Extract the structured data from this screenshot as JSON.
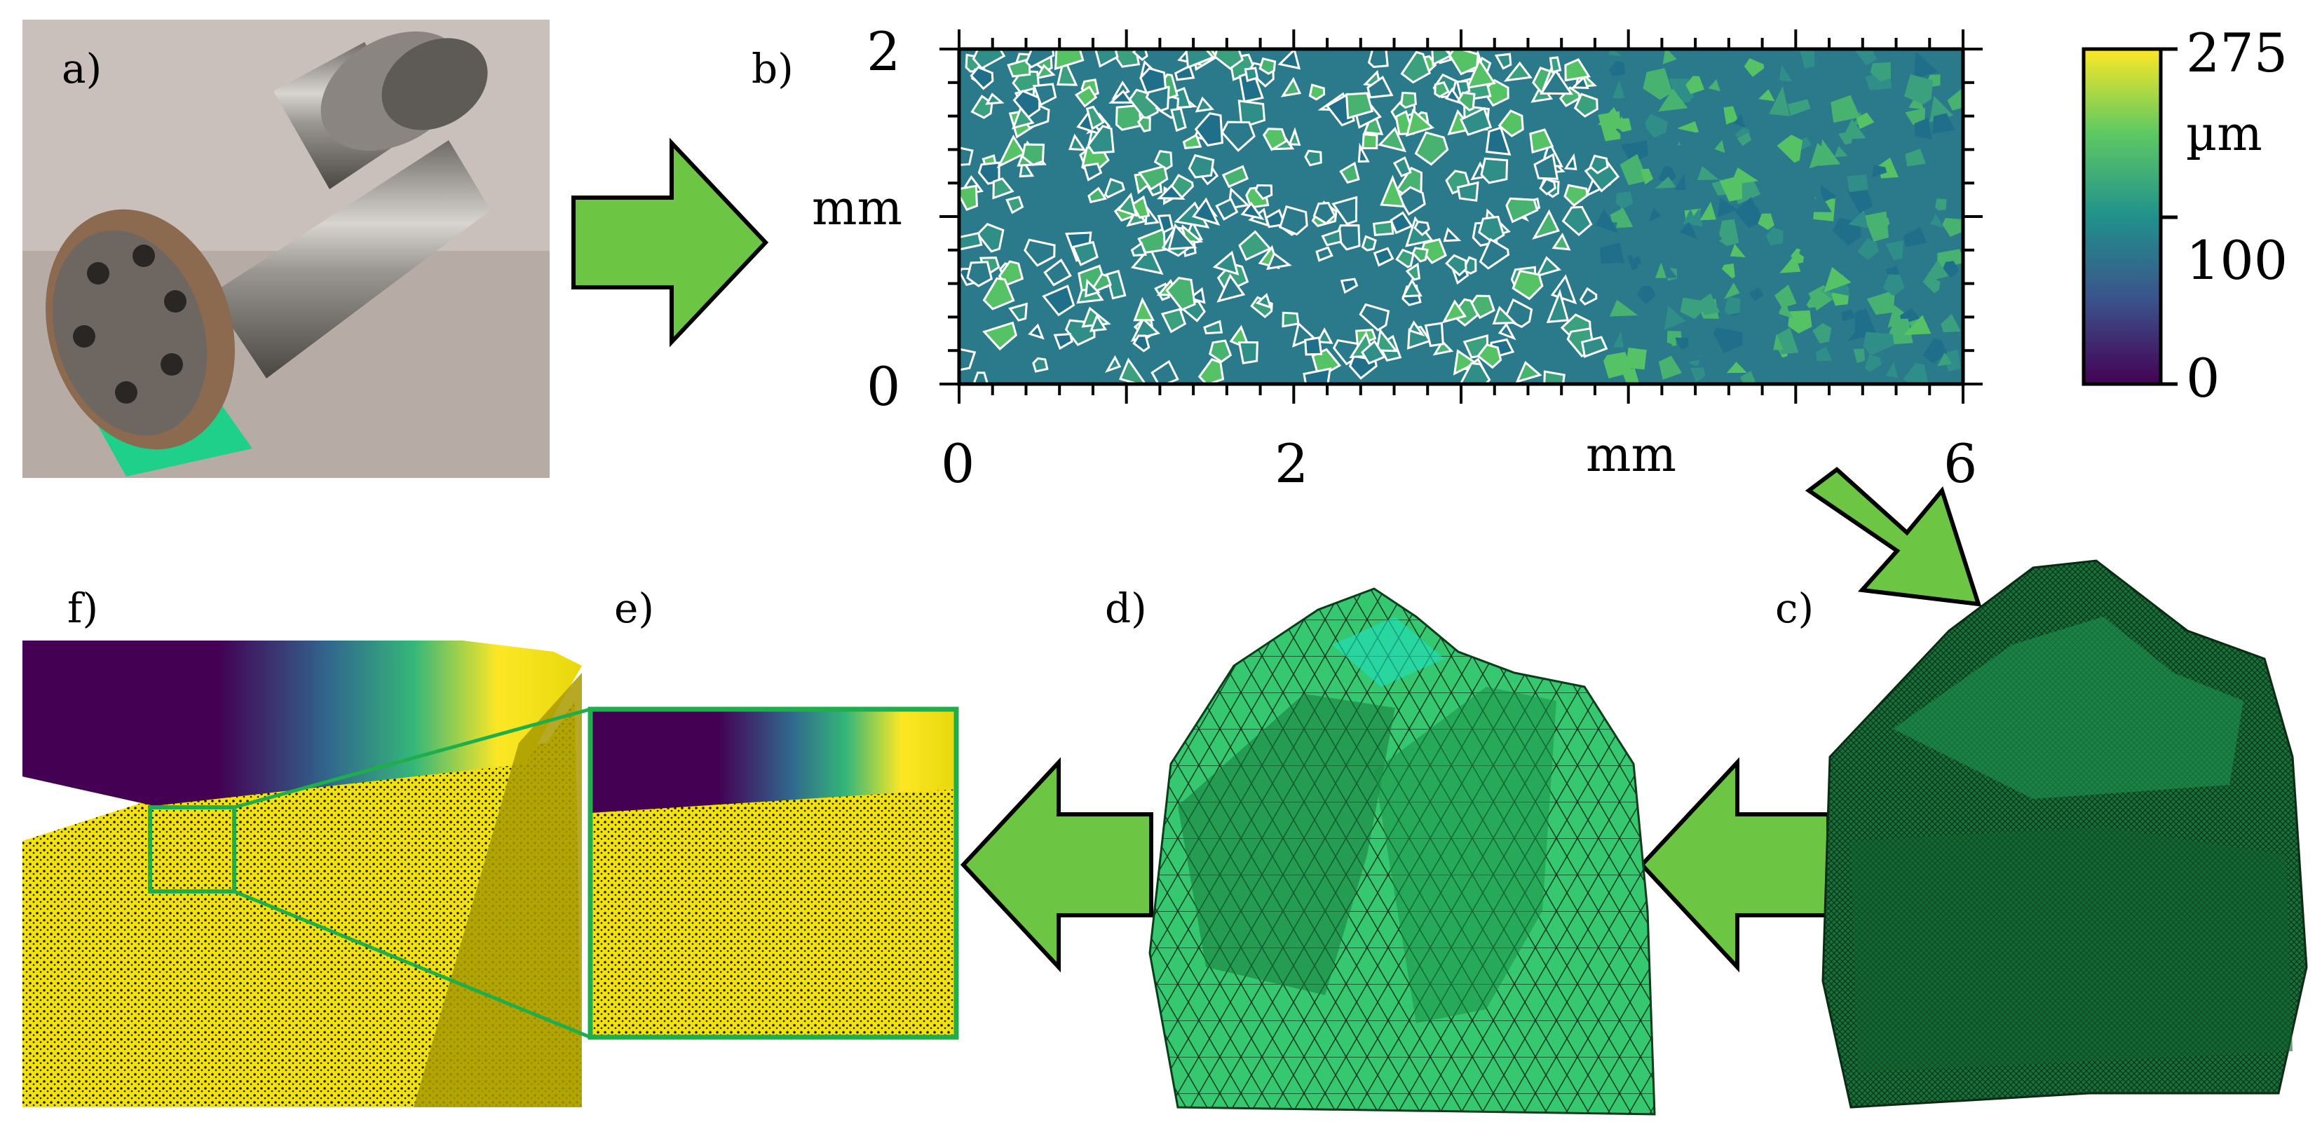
{
  "panels": {
    "a": {
      "label": "a)"
    },
    "b": {
      "label": "b)"
    },
    "c": {
      "label": "c)"
    },
    "d": {
      "label": "d)"
    },
    "e": {
      "label": "e)"
    },
    "f": {
      "label": "f)"
    }
  },
  "heightmap": {
    "x_unit": "mm",
    "y_unit": "mm",
    "x_ticks": [
      "0",
      "2",
      "6"
    ],
    "y_ticks": [
      "0",
      "2"
    ]
  },
  "colorbar": {
    "unit": "µm",
    "ticks": [
      "275",
      "100",
      "0"
    ],
    "colormap": [
      "#440154",
      "#3b528b",
      "#21918c",
      "#5ec962",
      "#fde725"
    ]
  },
  "colors": {
    "arrow_fill": "#6cc644",
    "zoom_box": "#1fae4b",
    "mesh_green": "#2ecc71",
    "point_cloud_yellow": "#f2e10a"
  }
}
